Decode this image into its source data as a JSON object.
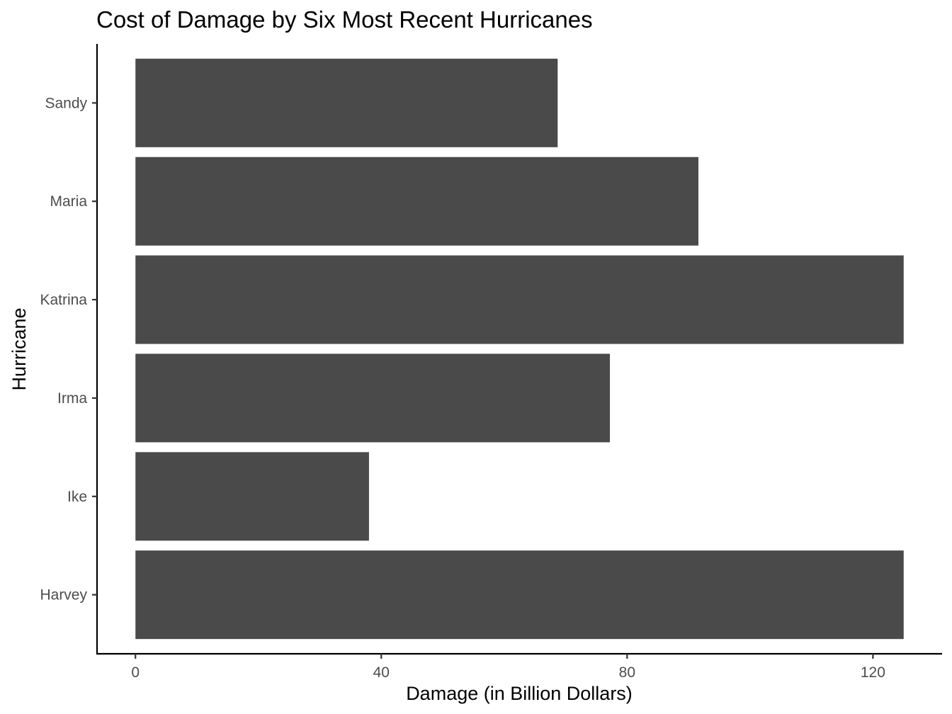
{
  "colors": {
    "bar_fill": "#4a4a4a",
    "axis": "#000000",
    "tick_text": "#4d4d4d",
    "background": "#ffffff"
  },
  "chart_data": {
    "type": "bar",
    "orientation": "horizontal",
    "title": "Cost of Damage by Six Most Recent Hurricanes",
    "xlabel": "Damage (in Billion Dollars)",
    "ylabel": "Hurricane",
    "categories": [
      "Harvey",
      "Ike",
      "Irma",
      "Katrina",
      "Maria",
      "Sandy"
    ],
    "values": [
      125,
      38,
      77.2,
      125,
      91.6,
      68.7
    ],
    "xlim": [
      -6.25,
      131.25
    ],
    "xticks": [
      0,
      40,
      80,
      120
    ],
    "grid": false,
    "legend": "none"
  }
}
